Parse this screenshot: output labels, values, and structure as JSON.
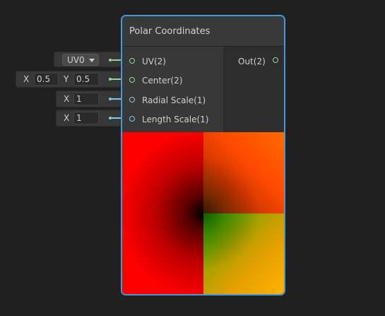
{
  "node": {
    "title": "Polar Coordinates",
    "inputs": [
      {
        "label": "UV(2)"
      },
      {
        "label": "Center(2)"
      },
      {
        "label": "Radial Scale(1)"
      },
      {
        "label": "Length Scale(1)"
      }
    ],
    "outputs": [
      {
        "label": "Out(2)"
      }
    ]
  },
  "fields": {
    "uv": {
      "value": "UV0"
    },
    "center": {
      "x_label": "X",
      "x_value": "0.5",
      "y_label": "Y",
      "y_value": "0.5"
    },
    "radial_scale": {
      "x_label": "X",
      "x_value": "1"
    },
    "length_scale": {
      "x_label": "X",
      "x_value": "1"
    }
  },
  "colors": {
    "accent": "#3f9bdc",
    "vec2_port": "#9ad49a",
    "float_port": "#84c8e8"
  }
}
